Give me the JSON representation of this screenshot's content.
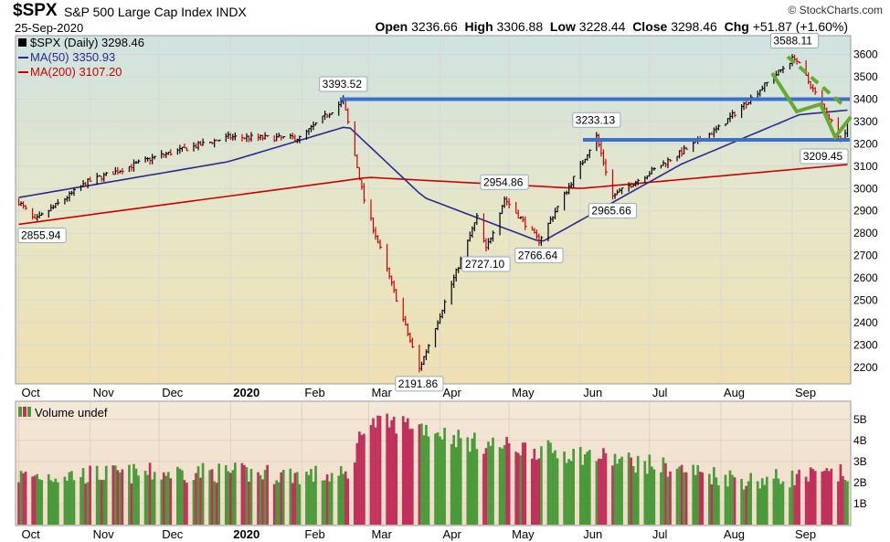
{
  "header": {
    "symbol": "$SPX",
    "name": "S&P 500 Large Cap Index",
    "exchange": "INDX",
    "date": "25-Sep-2020",
    "brand": "© StockCharts.com",
    "open_label": "Open",
    "open": "3236.66",
    "high_label": "High",
    "high": "3306.88",
    "low_label": "Low",
    "low": "3228.44",
    "close_label": "Close",
    "close": "3298.46",
    "chg_label": "Chg",
    "chg": "+51.87 (+1.60%)"
  },
  "legend": {
    "price": "$SPX (Daily) 3298.46",
    "ma50": "MA(50) 3350.93",
    "ma200": "MA(200) 3107.20",
    "volume": "Volume undef"
  },
  "colors": {
    "up": "#000000",
    "down": "#cc0000",
    "ma50": "#2a2a8c",
    "ma200": "#cc0000",
    "hline": "#3a6fcc",
    "pattern": "#66aa33",
    "vol_up": "#4a9a3a",
    "vol_down": "#c0305a"
  },
  "chart_data": [
    {
      "type": "line",
      "title": "S&P 500 Large Cap Index daily price",
      "x_months": [
        "Oct",
        "Nov",
        "Dec",
        "2020",
        "Feb",
        "Mar",
        "Apr",
        "May",
        "Jun",
        "Jul",
        "Aug",
        "Sep"
      ],
      "ylim": [
        2130,
        3680
      ],
      "yticks": [
        2200,
        2300,
        2400,
        2500,
        2600,
        2700,
        2800,
        2900,
        3000,
        3100,
        3200,
        3300,
        3400,
        3500,
        3600
      ],
      "key_points": [
        {
          "date": "2019-10-01",
          "value": 2940
        },
        {
          "date": "2019-10-08",
          "value": 2855.94
        },
        {
          "date": "2019-10-31",
          "value": 3030
        },
        {
          "date": "2019-11-29",
          "value": 3140
        },
        {
          "date": "2019-12-31",
          "value": 3230
        },
        {
          "date": "2020-01-31",
          "value": 3225
        },
        {
          "date": "2020-02-19",
          "value": 3393.52
        },
        {
          "date": "2020-02-28",
          "value": 2950
        },
        {
          "date": "2020-03-23",
          "value": 2191.86
        },
        {
          "date": "2020-04-17",
          "value": 2870
        },
        {
          "date": "2020-04-21",
          "value": 2727.1
        },
        {
          "date": "2020-04-29",
          "value": 2954.86
        },
        {
          "date": "2020-05-14",
          "value": 2766.64
        },
        {
          "date": "2020-06-08",
          "value": 3233.13
        },
        {
          "date": "2020-06-15",
          "value": 2965.66
        },
        {
          "date": "2020-07-31",
          "value": 3270
        },
        {
          "date": "2020-09-02",
          "value": 3588.11
        },
        {
          "date": "2020-09-23",
          "value": 3209.45
        },
        {
          "date": "2020-09-25",
          "value": 3298.46
        }
      ],
      "ma50_points": [
        {
          "date": "2019-10-01",
          "value": 2960
        },
        {
          "date": "2019-12-31",
          "value": 3120
        },
        {
          "date": "2020-02-21",
          "value": 3280
        },
        {
          "date": "2020-03-25",
          "value": 2960
        },
        {
          "date": "2020-05-15",
          "value": 2760
        },
        {
          "date": "2020-07-15",
          "value": 3110
        },
        {
          "date": "2020-09-04",
          "value": 3330
        },
        {
          "date": "2020-09-25",
          "value": 3350.93
        }
      ],
      "ma200_points": [
        {
          "date": "2019-10-01",
          "value": 2840
        },
        {
          "date": "2020-03-01",
          "value": 3050
        },
        {
          "date": "2020-06-01",
          "value": 3000
        },
        {
          "date": "2020-09-25",
          "value": 3107.2
        }
      ],
      "horizontal_lines": [
        3400,
        3218
      ],
      "annotations": [
        "2855.94",
        "3393.52",
        "2191.86",
        "2727.10",
        "2954.86",
        "2766.64",
        "3233.13",
        "2965.66",
        "3588.11",
        "3209.45"
      ]
    },
    {
      "type": "bar",
      "title": "Volume",
      "ylim": [
        0,
        5.6
      ],
      "yticks": [
        "1B",
        "2B",
        "3B",
        "4B",
        "5B"
      ],
      "key_levels": [
        {
          "date": "2019-10-01",
          "value": 2.3
        },
        {
          "date": "2019-12-20",
          "value": 2.5
        },
        {
          "date": "2020-02-21",
          "value": 2.3
        },
        {
          "date": "2020-02-28",
          "value": 4.8
        },
        {
          "date": "2020-03-20",
          "value": 4.8
        },
        {
          "date": "2020-04-15",
          "value": 3.9
        },
        {
          "date": "2020-06-05",
          "value": 3.3
        },
        {
          "date": "2020-08-14",
          "value": 2.1
        },
        {
          "date": "2020-09-25",
          "value": 2.4
        }
      ]
    }
  ]
}
